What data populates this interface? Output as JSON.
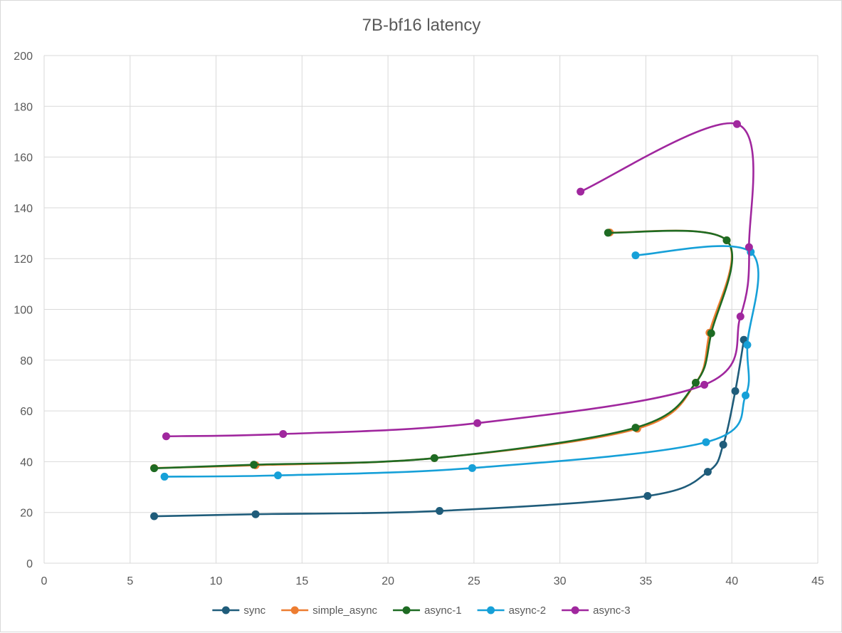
{
  "chart_data": {
    "type": "scatter",
    "title": "7B-bf16 latency",
    "xlabel": "",
    "ylabel": "",
    "xlim": [
      0,
      45
    ],
    "ylim": [
      0,
      200
    ],
    "x_ticks": [
      "0",
      "5",
      "10",
      "15",
      "20",
      "25",
      "30",
      "35",
      "40",
      "45"
    ],
    "y_ticks": [
      "0",
      "20",
      "40",
      "60",
      "80",
      "100",
      "120",
      "140",
      "160",
      "180",
      "200"
    ],
    "grid": true,
    "legend_position": "bottom",
    "smooth_lines": true,
    "series": [
      {
        "name": "sync",
        "color": "#1f5c7a",
        "points": [
          [
            6.4,
            18.5
          ],
          [
            12.3,
            19.3
          ],
          [
            23.0,
            20.6
          ],
          [
            35.1,
            26.5
          ],
          [
            38.6,
            36.0
          ],
          [
            39.5,
            46.7
          ],
          [
            40.2,
            67.8
          ],
          [
            40.7,
            88.0
          ]
        ]
      },
      {
        "name": "simple_async",
        "color": "#ed7d31",
        "points": [
          [
            6.4,
            37.5
          ],
          [
            12.3,
            38.6
          ],
          [
            22.7,
            41.4
          ],
          [
            34.5,
            53.0
          ],
          [
            37.9,
            71.1
          ],
          [
            38.7,
            90.8
          ],
          [
            39.7,
            127.2
          ],
          [
            32.9,
            130.3
          ]
        ]
      },
      {
        "name": "async-1",
        "color": "#1e6b23",
        "points": [
          [
            6.4,
            37.4
          ],
          [
            12.2,
            38.8
          ],
          [
            22.7,
            41.4
          ],
          [
            34.4,
            53.4
          ],
          [
            37.9,
            71.1
          ],
          [
            38.8,
            90.6
          ],
          [
            39.7,
            127.2
          ],
          [
            32.8,
            130.2
          ]
        ]
      },
      {
        "name": "async-2",
        "color": "#16a0d8",
        "points": [
          [
            7.0,
            34.1
          ],
          [
            13.6,
            34.6
          ],
          [
            24.9,
            37.5
          ],
          [
            38.5,
            47.7
          ],
          [
            40.8,
            66.1
          ],
          [
            40.9,
            86.0
          ],
          [
            41.1,
            122.6
          ],
          [
            34.4,
            121.3
          ]
        ]
      },
      {
        "name": "async-3",
        "color": "#a0279e",
        "points": [
          [
            7.1,
            50.0
          ],
          [
            13.9,
            50.9
          ],
          [
            25.2,
            55.2
          ],
          [
            38.4,
            70.3
          ],
          [
            40.5,
            97.2
          ],
          [
            41.0,
            124.5
          ],
          [
            40.3,
            173.0
          ],
          [
            31.2,
            146.4
          ]
        ]
      }
    ]
  }
}
